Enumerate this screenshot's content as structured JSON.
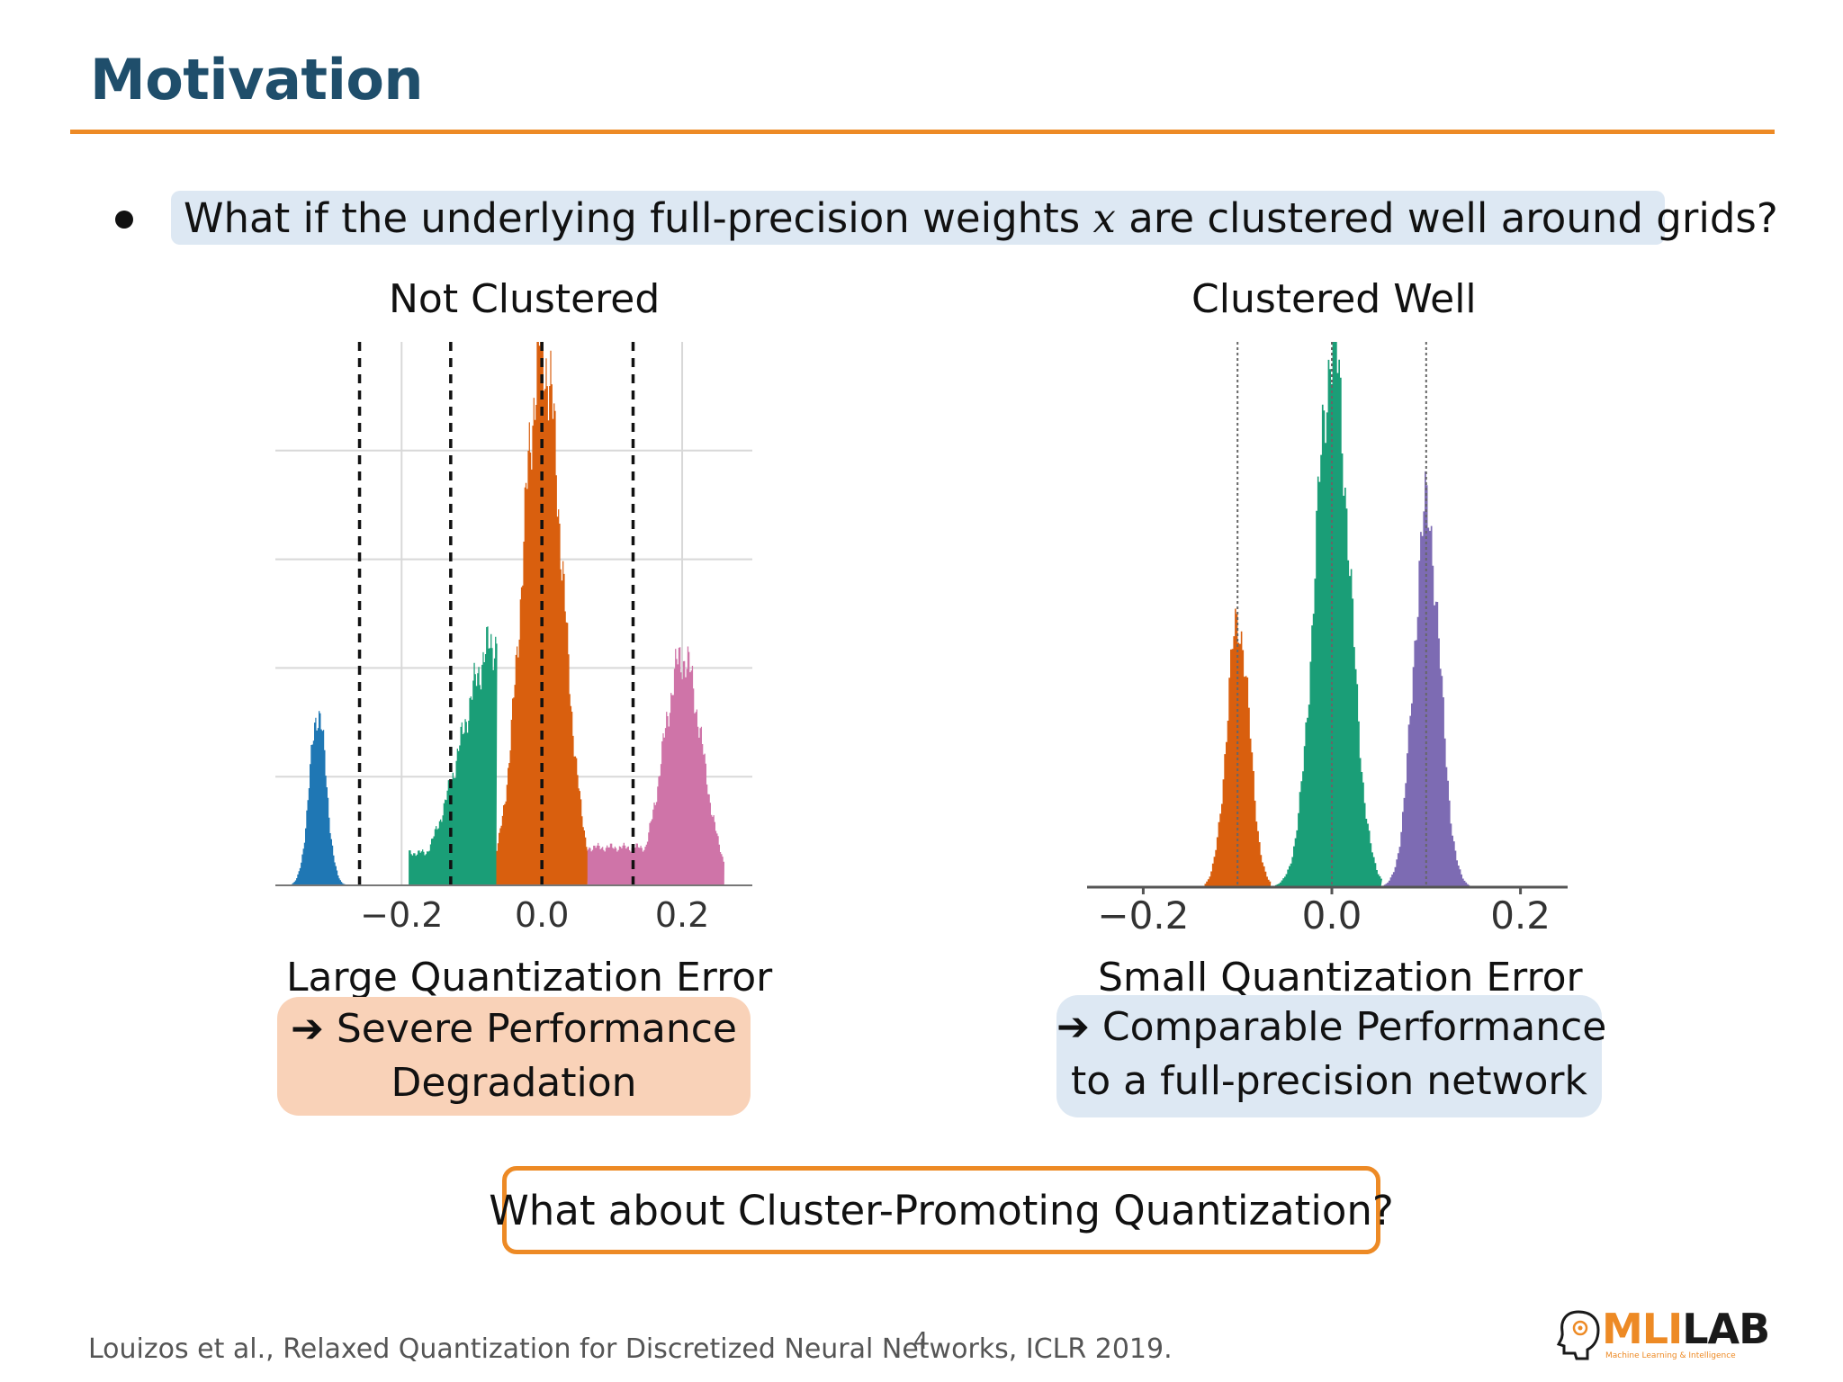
{
  "slide": {
    "title": "Motivation",
    "bullet": {
      "before": "What if the underlying full-precision weights ",
      "variable": "x",
      "after": " are clustered well around grids?"
    },
    "footer_reference": "Louizos et al., Relaxed Quantization for Discretized Neural Networks, ICLR 2019.",
    "page_number": "4",
    "question": "What about Cluster-Promoting Quantization?",
    "logo": {
      "text_ml": "MLI",
      "text_lab": "LAB",
      "subtitle": "Machine Learning & Intelligence"
    }
  },
  "left_panel": {
    "title": "Not Clustered",
    "caption": "Large Quantization Error",
    "result_lines": [
      "Severe Performance",
      "Degradation"
    ],
    "result_icon": "right-arrow-icon"
  },
  "right_panel": {
    "title": "Clustered Well",
    "caption": "Small Quantization Error",
    "result_lines": [
      "Comparable Performance",
      "to a full-precision network"
    ],
    "result_icon": "right-arrow-icon"
  },
  "colors": {
    "title": "#1f4e6b",
    "accent": "#ed8a25",
    "blue": "#1f77b4",
    "green": "#1a9e77",
    "orange": "#d95f0e",
    "pink": "#cf74a8",
    "purple": "#7d6bb3"
  },
  "chart_data": [
    {
      "type": "histogram",
      "name": "not-clustered",
      "x_ticks": [
        "−0.2",
        "0.0",
        "0.2"
      ],
      "x_tick_values": [
        -0.2,
        0.0,
        0.2
      ],
      "xlim": [
        -0.38,
        0.3
      ],
      "ylim": [
        0,
        1.0
      ],
      "grid": true,
      "quantization_grid": [
        -0.26,
        -0.13,
        0.0,
        0.13
      ],
      "series": [
        {
          "color": "#1f77b4",
          "range": [
            -0.36,
            -0.26
          ],
          "peaks": [
            [
              -0.32,
              0.32,
              0.012
            ]
          ],
          "tail": [
            -0.26,
            -0.19,
            0.04
          ]
        },
        {
          "color": "#1a9e77",
          "range": [
            -0.19,
            -0.065
          ],
          "peaks": [
            [
              -0.065,
              0.45,
              0.05
            ]
          ],
          "tail": [
            -0.19,
            -0.12,
            0.06
          ]
        },
        {
          "color": "#d95f0e",
          "range": [
            -0.065,
            0.065
          ],
          "peaks": [
            [
              0.0,
              0.99,
              0.028
            ]
          ]
        },
        {
          "color": "#cf74a8",
          "range": [
            0.065,
            0.26
          ],
          "peaks": [
            [
              0.2,
              0.42,
              0.028
            ]
          ],
          "tail": [
            0.065,
            0.15,
            0.07
          ]
        }
      ]
    },
    {
      "type": "histogram",
      "name": "clustered-well",
      "x_ticks": [
        "−0.2",
        "0.0",
        "0.2"
      ],
      "x_tick_values": [
        -0.2,
        0.0,
        0.2
      ],
      "xlim": [
        -0.25,
        0.25
      ],
      "ylim": [
        0,
        1.0
      ],
      "grid": false,
      "quantization_grid": [
        -0.1,
        0.0,
        0.1
      ],
      "series": [
        {
          "color": "#d95f0e",
          "range": [
            -0.135,
            -0.065
          ],
          "peaks": [
            [
              -0.1,
              0.49,
              0.012
            ]
          ]
        },
        {
          "color": "#1a9e77",
          "range": [
            -0.065,
            0.052
          ],
          "peaks": [
            [
              0.0,
              0.99,
              0.018
            ]
          ]
        },
        {
          "color": "#7d6bb3",
          "range": [
            0.052,
            0.145
          ],
          "peaks": [
            [
              0.1,
              0.69,
              0.014
            ]
          ]
        }
      ]
    }
  ]
}
